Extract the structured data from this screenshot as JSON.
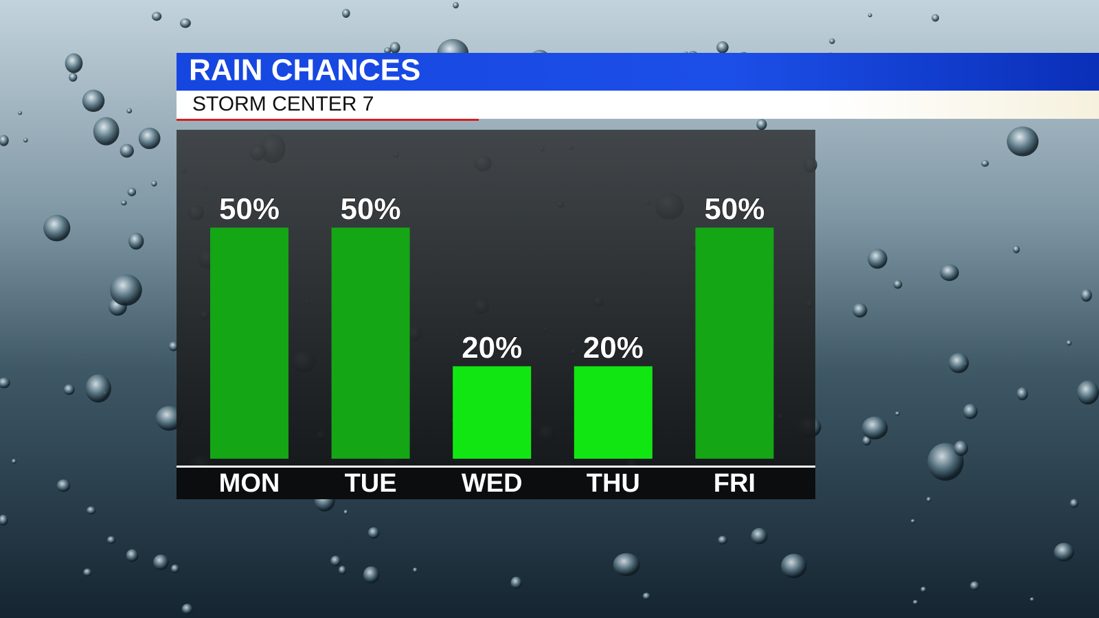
{
  "chart_data": {
    "type": "bar",
    "title": "RAIN CHANCES",
    "subtitle": "STORM CENTER 7",
    "categories": [
      "MON",
      "TUE",
      "WED",
      "THU",
      "FRI"
    ],
    "values": [
      50,
      50,
      20,
      20,
      50
    ],
    "value_labels": [
      "50%",
      "50%",
      "20%",
      "20%",
      "50%"
    ],
    "colors": [
      "#14a614",
      "#14a614",
      "#12e612",
      "#12e612",
      "#14a614"
    ]
  }
}
